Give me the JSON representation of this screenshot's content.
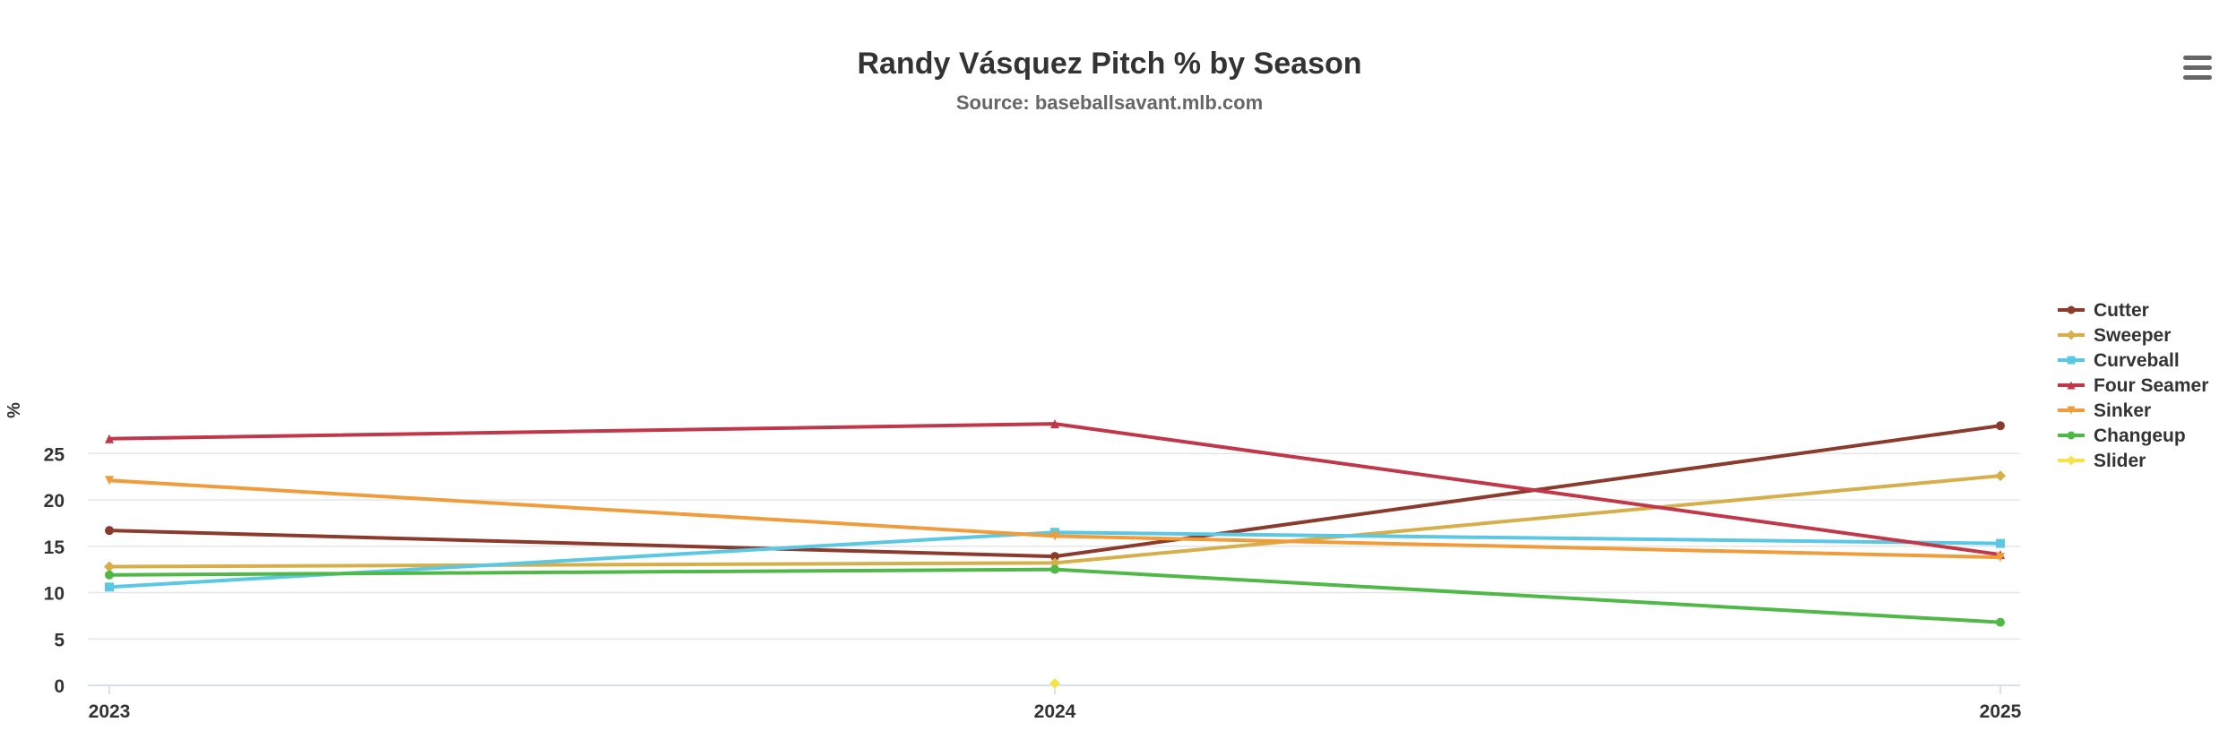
{
  "chart_data": {
    "type": "line",
    "title": "Randy Vásquez Pitch % by Season",
    "subtitle": "Source: baseballsavant.mlb.com",
    "xlabel": "",
    "ylabel": "%",
    "categories": [
      "2023",
      "2024",
      "2025"
    ],
    "ylim": [
      0,
      30
    ],
    "yticks": [
      0,
      5,
      10,
      15,
      20,
      25
    ],
    "grid": true,
    "legend_position": "right",
    "series": [
      {
        "name": "Cutter",
        "color": "#8a3b2e",
        "marker": "circle",
        "values": [
          16.7,
          13.9,
          28.0
        ]
      },
      {
        "name": "Sweeper",
        "color": "#d4af4a",
        "marker": "diamond",
        "values": [
          12.8,
          13.2,
          22.6
        ]
      },
      {
        "name": "Curveball",
        "color": "#5bc8e3",
        "marker": "square",
        "values": [
          10.6,
          16.5,
          15.3
        ]
      },
      {
        "name": "Four Seamer",
        "color": "#c0374a",
        "marker": "triangle",
        "values": [
          26.6,
          28.2,
          14.1
        ]
      },
      {
        "name": "Sinker",
        "color": "#f09c3a",
        "marker": "triangle-down",
        "values": [
          22.1,
          16.1,
          13.8
        ]
      },
      {
        "name": "Changeup",
        "color": "#4fb847",
        "marker": "circle",
        "values": [
          11.9,
          12.5,
          6.8
        ]
      },
      {
        "name": "Slider",
        "color": "#f5e34a",
        "marker": "diamond",
        "values": [
          null,
          0.2,
          null
        ]
      }
    ]
  },
  "menu": {
    "icon": "hamburger-menu-icon"
  }
}
